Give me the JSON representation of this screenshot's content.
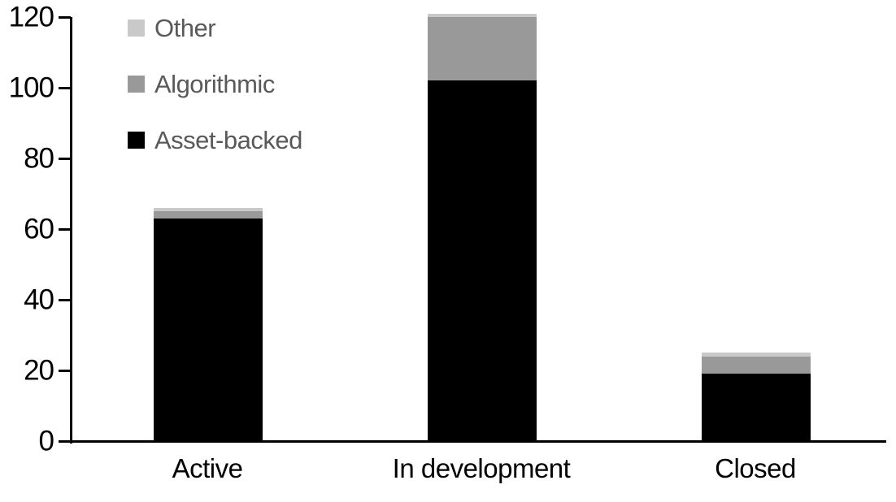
{
  "chart_data": {
    "type": "bar",
    "stacked": true,
    "title": "",
    "xlabel": "",
    "ylabel": "",
    "categories": [
      "Active",
      "In development",
      "Closed"
    ],
    "series": [
      {
        "name": "Asset-backed",
        "color": "#000000",
        "values": [
          63,
          102,
          19
        ]
      },
      {
        "name": "Algorithmic",
        "color": "#999999",
        "values": [
          2,
          18,
          5
        ]
      },
      {
        "name": "Other",
        "color": "#c9c9c9",
        "values": [
          1,
          1,
          1
        ]
      }
    ],
    "totals": [
      66,
      121,
      25
    ],
    "ylim": [
      0,
      120
    ],
    "yticks": [
      0,
      20,
      40,
      60,
      80,
      100,
      120
    ],
    "grid": false,
    "legend": [
      "Other",
      "Algorithmic",
      "Asset-backed"
    ],
    "legend_position": "top-left"
  },
  "colors": {
    "background": "#ffffff",
    "axis": "#000000",
    "tick_label": "#000000",
    "legend_text": "#595959"
  }
}
